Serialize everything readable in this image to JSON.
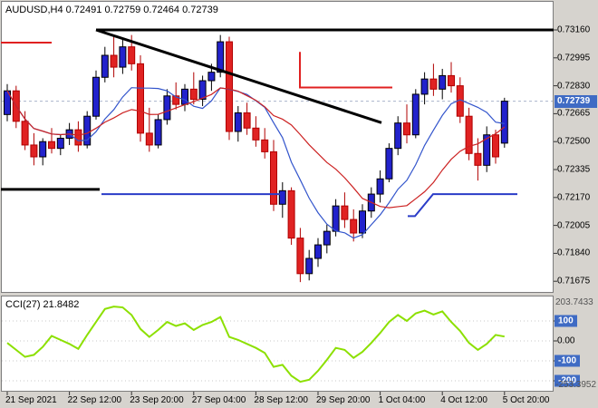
{
  "header": {
    "title": "AUDUSD,H4 0.72491 0.72759 0.72464 0.72739"
  },
  "price_axis": {
    "labels": [
      "0.73160",
      "0.72995",
      "0.72830",
      "0.72665",
      "0.72500",
      "0.72335",
      "0.72170",
      "0.72005",
      "0.71840",
      "0.71675"
    ],
    "current_price": "0.72739"
  },
  "time_axis": {
    "labels": [
      "21 Sep 2021",
      "22 Sep 12:00",
      "23 Sep 20:00",
      "27 Sep 04:00",
      "28 Sep 12:00",
      "29 Sep 20:00",
      "1 Oct 04:00",
      "4 Oct 12:00",
      "5 Oct 20:00"
    ]
  },
  "indicator": {
    "label": "CCI(27) 21.8482",
    "scale_max_label": "203.7433",
    "scale_min_label": "-253.3952",
    "levels": [
      {
        "value": 100,
        "label": "100",
        "boxed": true
      },
      {
        "value": 0,
        "label": "0.00",
        "boxed": false
      },
      {
        "value": -100,
        "label": "-100",
        "boxed": true
      },
      {
        "value": -200,
        "label": "-200",
        "boxed": true
      }
    ]
  },
  "colors": {
    "bull": "#2222cc",
    "bear": "#e02222",
    "bull_edge": "#000000",
    "bear_edge": "#b00000",
    "ma_fast": "#3355cc",
    "ma_slow": "#cc2222",
    "cci_line": "#8ce000",
    "price_tag_bg": "#3f6bc4",
    "bid_line": "#aab4cc",
    "tick": "#333333",
    "cci_level_line": "#c8c8c8"
  },
  "chart_data": {
    "type": "candlestick",
    "symbol": "AUDUSD",
    "timeframe": "H4",
    "current_bar": {
      "open": 0.72491,
      "high": 0.72759,
      "low": 0.72464,
      "close": 0.72739
    },
    "price_range": [
      0.71675,
      0.7316
    ],
    "candles": [
      [
        0.7266,
        0.7284,
        0.7262,
        0.728
      ],
      [
        0.728,
        0.7283,
        0.7258,
        0.7262
      ],
      [
        0.7262,
        0.7268,
        0.7245,
        0.7248
      ],
      [
        0.7248,
        0.7255,
        0.7236,
        0.7241
      ],
      [
        0.7241,
        0.7252,
        0.7236,
        0.725
      ],
      [
        0.725,
        0.7258,
        0.7243,
        0.7246
      ],
      [
        0.7246,
        0.7254,
        0.7242,
        0.7252
      ],
      [
        0.7252,
        0.7261,
        0.7248,
        0.7257
      ],
      [
        0.7257,
        0.7262,
        0.7244,
        0.7248
      ],
      [
        0.7248,
        0.7268,
        0.7246,
        0.7265
      ],
      [
        0.7265,
        0.7292,
        0.7263,
        0.7288
      ],
      [
        0.7288,
        0.7306,
        0.7285,
        0.7301
      ],
      [
        0.7301,
        0.7312,
        0.7288,
        0.7294
      ],
      [
        0.7294,
        0.7311,
        0.729,
        0.7306
      ],
      [
        0.7306,
        0.7313,
        0.7292,
        0.7296
      ],
      [
        0.7296,
        0.7301,
        0.725,
        0.7255
      ],
      [
        0.7255,
        0.727,
        0.7244,
        0.7248
      ],
      [
        0.7248,
        0.7266,
        0.7246,
        0.7263
      ],
      [
        0.7263,
        0.7281,
        0.726,
        0.7277
      ],
      [
        0.7277,
        0.7285,
        0.7269,
        0.7272
      ],
      [
        0.7272,
        0.7284,
        0.7268,
        0.7281
      ],
      [
        0.7281,
        0.7291,
        0.7272,
        0.7275
      ],
      [
        0.7275,
        0.7289,
        0.7271,
        0.7286
      ],
      [
        0.7286,
        0.7296,
        0.728,
        0.7291
      ],
      [
        0.7291,
        0.7313,
        0.7288,
        0.7309
      ],
      [
        0.7309,
        0.7312,
        0.7251,
        0.7256
      ],
      [
        0.7256,
        0.7271,
        0.725,
        0.7267
      ],
      [
        0.7267,
        0.7273,
        0.7254,
        0.7258
      ],
      [
        0.7258,
        0.7265,
        0.7247,
        0.7251
      ],
      [
        0.7251,
        0.7258,
        0.724,
        0.7244
      ],
      [
        0.7244,
        0.7251,
        0.7209,
        0.7213
      ],
      [
        0.7213,
        0.7226,
        0.7205,
        0.7221
      ],
      [
        0.7221,
        0.7223,
        0.7189,
        0.7193
      ],
      [
        0.7193,
        0.7199,
        0.7167,
        0.7172
      ],
      [
        0.7172,
        0.7186,
        0.7168,
        0.7181
      ],
      [
        0.7181,
        0.7193,
        0.7176,
        0.7189
      ],
      [
        0.7189,
        0.7201,
        0.7184,
        0.7197
      ],
      [
        0.7197,
        0.7216,
        0.7194,
        0.7212
      ],
      [
        0.7212,
        0.722,
        0.7199,
        0.7204
      ],
      [
        0.7204,
        0.721,
        0.7191,
        0.7196
      ],
      [
        0.7196,
        0.7213,
        0.7193,
        0.7209
      ],
      [
        0.7209,
        0.7223,
        0.7205,
        0.7219
      ],
      [
        0.7219,
        0.7233,
        0.7214,
        0.7228
      ],
      [
        0.7228,
        0.7249,
        0.7226,
        0.7246
      ],
      [
        0.7246,
        0.7265,
        0.7242,
        0.7261
      ],
      [
        0.7261,
        0.7272,
        0.7249,
        0.7254
      ],
      [
        0.7254,
        0.7281,
        0.7252,
        0.7278
      ],
      [
        0.7278,
        0.7291,
        0.7272,
        0.7287
      ],
      [
        0.7287,
        0.7296,
        0.7277,
        0.7281
      ],
      [
        0.7281,
        0.7293,
        0.7275,
        0.7289
      ],
      [
        0.7289,
        0.7297,
        0.7279,
        0.7283
      ],
      [
        0.7283,
        0.7288,
        0.7261,
        0.7265
      ],
      [
        0.7265,
        0.727,
        0.7239,
        0.7243
      ],
      [
        0.7243,
        0.7252,
        0.7227,
        0.7236
      ],
      [
        0.7236,
        0.7259,
        0.7232,
        0.7254
      ],
      [
        0.7254,
        0.7257,
        0.7237,
        0.7241
      ],
      [
        0.72491,
        0.72759,
        0.72464,
        0.72739
      ]
    ],
    "indicators": {
      "cci": {
        "period": 27,
        "last_value": 21.8482,
        "levels": [
          100,
          0,
          -100,
          -200
        ],
        "scale_max": 203.7433,
        "scale_min": -253.3952,
        "values": [
          -10,
          -45,
          -80,
          -70,
          -30,
          25,
          5,
          -15,
          -40,
          30,
          95,
          160,
          172,
          168,
          130,
          60,
          20,
          55,
          95,
          75,
          88,
          55,
          80,
          95,
          120,
          20,
          5,
          -15,
          -35,
          -60,
          -130,
          -120,
          -175,
          -205,
          -195,
          -150,
          -95,
          -35,
          -45,
          -85,
          -55,
          -10,
          40,
          95,
          130,
          100,
          138,
          152,
          132,
          148,
          95,
          50,
          -10,
          -45,
          -15,
          30,
          21.8482
        ]
      }
    },
    "objects": [
      {
        "name": "upper-resistance-hline",
        "color": "#000000",
        "w": 3,
        "pts": [
          [
            106,
            0.7316
          ],
          [
            611,
            0.7316
          ]
        ]
      },
      {
        "name": "descending-trendline",
        "color": "#000000",
        "w": 3,
        "pts": [
          [
            106,
            0.7316
          ],
          [
            421,
            0.72612
          ]
        ]
      },
      {
        "name": "lower-support-hline",
        "color": "#000000",
        "w": 3,
        "pts": [
          [
            1,
            0.72218
          ],
          [
            110,
            0.72218
          ]
        ]
      },
      {
        "name": "left-red-resistance-segment",
        "color": "#e02020",
        "w": 2,
        "pts": [
          [
            1,
            0.73085
          ],
          [
            57,
            0.73085
          ]
        ]
      },
      {
        "name": "mid-red-level-segment",
        "color": "#e02020",
        "w": 2,
        "pts": [
          [
            331,
            0.7303
          ],
          [
            331,
            0.7282
          ],
          [
            433,
            0.7282
          ]
        ]
      },
      {
        "name": "blue-support-segment-left",
        "color": "#2a3cc8",
        "w": 2,
        "pts": [
          [
            112,
            0.7219
          ],
          [
            309,
            0.7219
          ]
        ]
      },
      {
        "name": "blue-support-segment-right",
        "color": "#2a3cc8",
        "w": 2,
        "pts": [
          [
            450,
            0.7206
          ],
          [
            458,
            0.7206
          ],
          [
            478,
            0.7219
          ],
          [
            571,
            0.7219
          ]
        ]
      }
    ]
  }
}
